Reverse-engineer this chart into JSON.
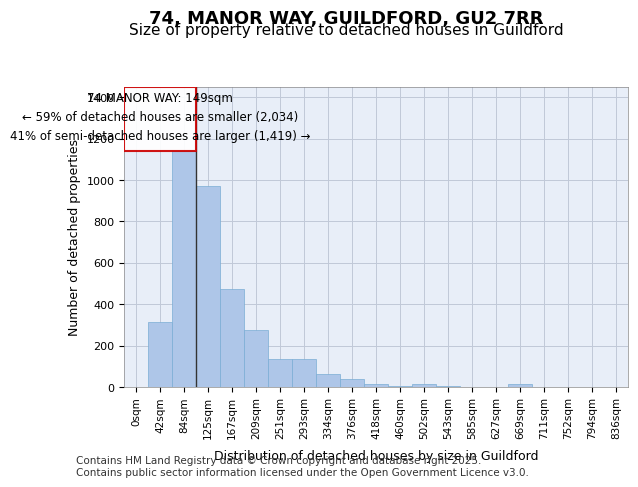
{
  "title": "74, MANOR WAY, GUILDFORD, GU2 7RR",
  "subtitle": "Size of property relative to detached houses in Guildford",
  "xlabel": "Distribution of detached houses by size in Guildford",
  "ylabel": "Number of detached properties",
  "bar_color": "#aec6e8",
  "bar_edge_color": "#7aadd4",
  "background_color": "#e8eef8",
  "grid_color": "#c0c8d8",
  "categories": [
    "0sqm",
    "42sqm",
    "84sqm",
    "125sqm",
    "167sqm",
    "209sqm",
    "251sqm",
    "293sqm",
    "334sqm",
    "376sqm",
    "418sqm",
    "460sqm",
    "502sqm",
    "543sqm",
    "585sqm",
    "627sqm",
    "669sqm",
    "711sqm",
    "752sqm",
    "794sqm",
    "836sqm"
  ],
  "values": [
    0,
    315,
    1140,
    970,
    475,
    275,
    135,
    135,
    65,
    40,
    15,
    5,
    15,
    5,
    0,
    0,
    15,
    0,
    0,
    0,
    0
  ],
  "ylim": [
    0,
    1450
  ],
  "yticks": [
    0,
    200,
    400,
    600,
    800,
    1000,
    1200,
    1400
  ],
  "annotation_box_text": "74 MANOR WAY: 149sqm\n← 59% of detached houses are smaller (2,034)\n41% of semi-detached houses are larger (1,419) →",
  "vline_bar_index": 2,
  "footnote": "Contains HM Land Registry data © Crown copyright and database right 2025.\nContains public sector information licensed under the Open Government Licence v3.0.",
  "title_fontsize": 13,
  "subtitle_fontsize": 11,
  "annotation_fontsize": 8.5,
  "tick_fontsize": 8,
  "label_fontsize": 9,
  "footnote_fontsize": 7.5
}
